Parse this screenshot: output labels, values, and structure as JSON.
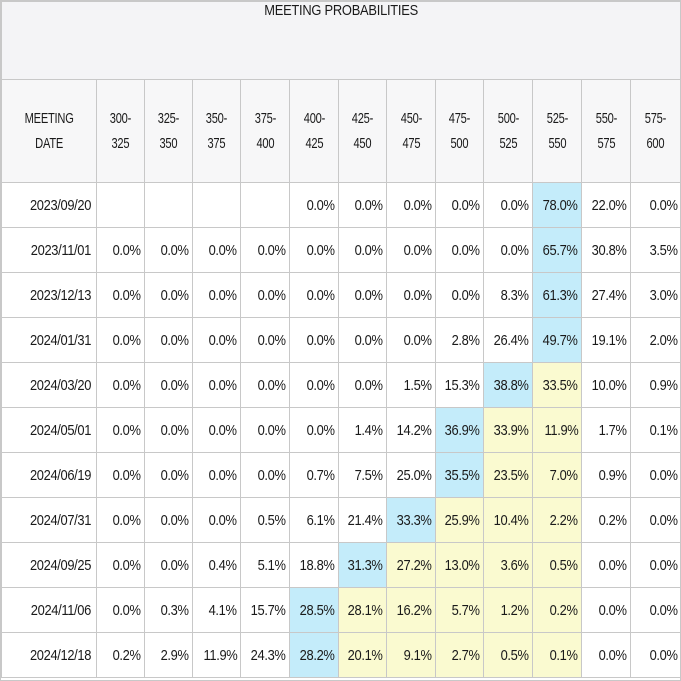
{
  "title": "MEETING PROBABILITIES",
  "header": {
    "date_col": [
      "MEETING",
      "DATE"
    ],
    "ranges": [
      [
        "300-",
        "325"
      ],
      [
        "325-",
        "350"
      ],
      [
        "350-",
        "375"
      ],
      [
        "375-",
        "400"
      ],
      [
        "400-",
        "425"
      ],
      [
        "425-",
        "450"
      ],
      [
        "450-",
        "475"
      ],
      [
        "475-",
        "500"
      ],
      [
        "500-",
        "525"
      ],
      [
        "525-",
        "550"
      ],
      [
        "550-",
        "575"
      ],
      [
        "575-",
        "600"
      ]
    ]
  },
  "colors": {
    "highlight": "#c4ecfa",
    "shade": "#fafad0",
    "border": "#c8c8c8"
  },
  "rows": [
    {
      "date": "2023/09/20",
      "values": [
        "",
        "",
        "",
        "",
        "0.0%",
        "0.0%",
        "0.0%",
        "0.0%",
        "0.0%",
        "78.0%",
        "22.0%",
        "0.0%"
      ],
      "style": [
        "",
        "",
        "",
        "",
        "",
        "",
        "",
        "",
        "",
        "hl",
        "",
        ""
      ]
    },
    {
      "date": "2023/11/01",
      "values": [
        "0.0%",
        "0.0%",
        "0.0%",
        "0.0%",
        "0.0%",
        "0.0%",
        "0.0%",
        "0.0%",
        "0.0%",
        "65.7%",
        "30.8%",
        "3.5%"
      ],
      "style": [
        "",
        "",
        "",
        "",
        "",
        "",
        "",
        "",
        "",
        "hl",
        "",
        ""
      ]
    },
    {
      "date": "2023/12/13",
      "values": [
        "0.0%",
        "0.0%",
        "0.0%",
        "0.0%",
        "0.0%",
        "0.0%",
        "0.0%",
        "0.0%",
        "8.3%",
        "61.3%",
        "27.4%",
        "3.0%"
      ],
      "style": [
        "",
        "",
        "",
        "",
        "",
        "",
        "",
        "",
        "",
        "hl",
        "",
        ""
      ]
    },
    {
      "date": "2024/01/31",
      "values": [
        "0.0%",
        "0.0%",
        "0.0%",
        "0.0%",
        "0.0%",
        "0.0%",
        "0.0%",
        "2.8%",
        "26.4%",
        "49.7%",
        "19.1%",
        "2.0%"
      ],
      "style": [
        "",
        "",
        "",
        "",
        "",
        "",
        "",
        "",
        "",
        "hl",
        "",
        ""
      ]
    },
    {
      "date": "2024/03/20",
      "values": [
        "0.0%",
        "0.0%",
        "0.0%",
        "0.0%",
        "0.0%",
        "0.0%",
        "1.5%",
        "15.3%",
        "38.8%",
        "33.5%",
        "10.0%",
        "0.9%"
      ],
      "style": [
        "",
        "",
        "",
        "",
        "",
        "",
        "",
        "",
        "hl",
        "yl",
        "",
        ""
      ]
    },
    {
      "date": "2024/05/01",
      "values": [
        "0.0%",
        "0.0%",
        "0.0%",
        "0.0%",
        "0.0%",
        "1.4%",
        "14.2%",
        "36.9%",
        "33.9%",
        "11.9%",
        "1.7%",
        "0.1%"
      ],
      "style": [
        "",
        "",
        "",
        "",
        "",
        "",
        "",
        "hl",
        "yl",
        "yl",
        "",
        ""
      ]
    },
    {
      "date": "2024/06/19",
      "values": [
        "0.0%",
        "0.0%",
        "0.0%",
        "0.0%",
        "0.7%",
        "7.5%",
        "25.0%",
        "35.5%",
        "23.5%",
        "7.0%",
        "0.9%",
        "0.0%"
      ],
      "style": [
        "",
        "",
        "",
        "",
        "",
        "",
        "",
        "hl",
        "yl",
        "yl",
        "",
        ""
      ]
    },
    {
      "date": "2024/07/31",
      "values": [
        "0.0%",
        "0.0%",
        "0.0%",
        "0.5%",
        "6.1%",
        "21.4%",
        "33.3%",
        "25.9%",
        "10.4%",
        "2.2%",
        "0.2%",
        "0.0%"
      ],
      "style": [
        "",
        "",
        "",
        "",
        "",
        "",
        "hl",
        "yl",
        "yl",
        "yl",
        "",
        ""
      ]
    },
    {
      "date": "2024/09/25",
      "values": [
        "0.0%",
        "0.0%",
        "0.4%",
        "5.1%",
        "18.8%",
        "31.3%",
        "27.2%",
        "13.0%",
        "3.6%",
        "0.5%",
        "0.0%",
        "0.0%"
      ],
      "style": [
        "",
        "",
        "",
        "",
        "",
        "hl",
        "yl",
        "yl",
        "yl",
        "yl",
        "",
        ""
      ]
    },
    {
      "date": "2024/11/06",
      "values": [
        "0.0%",
        "0.3%",
        "4.1%",
        "15.7%",
        "28.5%",
        "28.1%",
        "16.2%",
        "5.7%",
        "1.2%",
        "0.2%",
        "0.0%",
        "0.0%"
      ],
      "style": [
        "",
        "",
        "",
        "",
        "hl",
        "yl",
        "yl",
        "yl",
        "yl",
        "yl",
        "",
        ""
      ]
    },
    {
      "date": "2024/12/18",
      "values": [
        "0.2%",
        "2.9%",
        "11.9%",
        "24.3%",
        "28.2%",
        "20.1%",
        "9.1%",
        "2.7%",
        "0.5%",
        "0.1%",
        "0.0%",
        "0.0%"
      ],
      "style": [
        "",
        "",
        "",
        "",
        "hl",
        "yl",
        "yl",
        "yl",
        "yl",
        "yl",
        "",
        ""
      ]
    }
  ]
}
